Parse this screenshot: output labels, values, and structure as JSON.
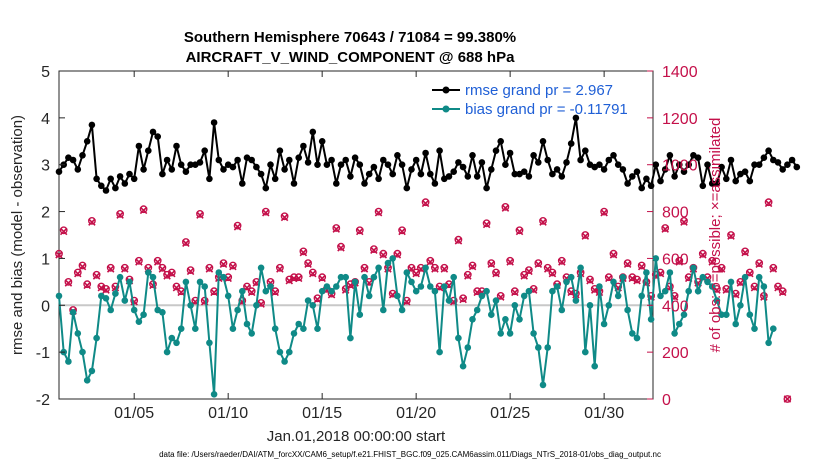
{
  "colors": {
    "rmse": "#000000",
    "bias": "#0f8a87",
    "obs": "#c4104a",
    "zero_line": "#c8c8c8",
    "legend_text": "#1f5fd6"
  },
  "chart_data": {
    "type": "line",
    "title": "Southern Hemisphere 70643 / 71084 = 99.380%",
    "subtitle": "AIRCRAFT_V_WIND_COMPONENT @ 688 hPa",
    "xlabel": "Jan.01,2018 00:00:00 start",
    "ylabel": "rmse and bias (model - observation)",
    "ylabel_right": "# of obs: o=possible; ×=assimilated",
    "xlim": [
      1.0,
      32.6
    ],
    "ylim": [
      -2,
      5
    ],
    "ylim_right": [
      0,
      1400
    ],
    "x_ticks": [
      5,
      10,
      15,
      20,
      25,
      30
    ],
    "x_tick_labels": [
      "01/05",
      "01/10",
      "01/15",
      "01/20",
      "01/25",
      "01/30"
    ],
    "y_tick_labels": [
      "-2",
      "-1",
      "0",
      "1",
      "2",
      "3",
      "4",
      "5"
    ],
    "y_right_tick_labels": [
      "0",
      "200",
      "400",
      "600",
      "800",
      "1000",
      "1200",
      "1400"
    ],
    "legend": [
      {
        "name": "rmse",
        "label": "rmse grand pr = 2.967"
      },
      {
        "name": "bias",
        "label": "bias grand pr = -0.11791"
      }
    ],
    "x_start": 1.0,
    "x_step": 0.25,
    "series": [
      {
        "name": "rmse",
        "axis": "left",
        "values": [
          2.85,
          3.0,
          3.15,
          3.1,
          2.9,
          3.2,
          3.5,
          3.85,
          2.7,
          2.55,
          2.45,
          2.7,
          2.5,
          2.75,
          2.6,
          2.8,
          2.7,
          3.4,
          2.9,
          3.3,
          3.7,
          3.6,
          2.8,
          3.1,
          2.9,
          3.4,
          3.0,
          2.85,
          3.0,
          3.0,
          3.05,
          3.3,
          2.7,
          3.9,
          3.1,
          2.9,
          3.0,
          2.95,
          3.1,
          2.6,
          3.15,
          3.1,
          2.95,
          2.8,
          2.5,
          3.0,
          2.7,
          3.3,
          2.9,
          3.1,
          2.6,
          3.15,
          3.4,
          3.05,
          3.7,
          3.0,
          3.5,
          3.0,
          3.1,
          2.6,
          3.0,
          3.1,
          2.75,
          3.15,
          3.0,
          2.6,
          2.8,
          2.95,
          2.7,
          3.1,
          3.0,
          2.8,
          3.2,
          3.0,
          2.5,
          2.9,
          3.1,
          2.8,
          3.25,
          2.8,
          2.6,
          3.3,
          2.7,
          2.75,
          2.85,
          3.05,
          2.95,
          2.75,
          3.2,
          2.75,
          3.05,
          2.5,
          2.9,
          3.3,
          3.5,
          3.0,
          3.25,
          2.8,
          2.8,
          2.85,
          2.75,
          3.2,
          3.05,
          3.5,
          3.1,
          2.8,
          2.9,
          2.75,
          3.05,
          3.45,
          4.0,
          3.1,
          3.3,
          3.0,
          2.95,
          3.0,
          2.9,
          3.1,
          3.2,
          3.0,
          2.9,
          2.6,
          2.75,
          2.85,
          2.5,
          2.7,
          2.55,
          3.0,
          2.65,
          2.9,
          3.2,
          2.75,
          3.0,
          2.85,
          3.0,
          3.2,
          3.15,
          2.55,
          3.0,
          2.6,
          2.6,
          2.95,
          2.7,
          3.1,
          2.65,
          2.8,
          2.85,
          2.65,
          3.0,
          3.0,
          3.15,
          3.3,
          3.1,
          3.05,
          2.9,
          3.0,
          3.1,
          2.95
        ]
      },
      {
        "name": "bias",
        "axis": "left",
        "values": [
          0.2,
          -1.0,
          -1.2,
          -0.15,
          -0.6,
          -1.0,
          -1.6,
          -1.4,
          -0.7,
          0.2,
          0.15,
          -0.1,
          0.25,
          0.6,
          0.1,
          0.5,
          -0.1,
          -0.35,
          -0.2,
          0.7,
          0.6,
          -0.1,
          -0.15,
          -1.0,
          -0.7,
          -0.8,
          -0.5,
          0.5,
          0.0,
          -0.5,
          0.5,
          0.4,
          -0.8,
          -1.9,
          0.7,
          0.6,
          0.2,
          -0.5,
          -0.1,
          0.3,
          -0.4,
          -0.6,
          0.0,
          0.8,
          0.3,
          0.4,
          -0.5,
          -1.0,
          -1.2,
          -1.0,
          -0.6,
          -0.4,
          -0.5,
          0.1,
          0.0,
          -0.5,
          0.3,
          0.4,
          0.3,
          0.4,
          0.6,
          0.6,
          -0.7,
          0.5,
          -0.2,
          0.6,
          0.2,
          0.6,
          0.8,
          -0.1,
          0.9,
          1.0,
          0.2,
          -0.1,
          0.7,
          0.5,
          0.3,
          0.4,
          0.8,
          0.4,
          0.3,
          -1.0,
          0.4,
          0.1,
          0.6,
          -0.7,
          -1.3,
          -0.9,
          -0.3,
          -0.1,
          0.2,
          0.3,
          -0.2,
          0.1,
          -0.6,
          -0.3,
          -0.6,
          0.0,
          -0.3,
          0.2,
          0.3,
          -0.6,
          -0.9,
          -1.7,
          -0.9,
          0.3,
          0.4,
          -0.1,
          0.5,
          0.6,
          0.1,
          0.8,
          -1.0,
          0.0,
          -1.3,
          0.4,
          -0.4,
          0.0,
          0.5,
          0.2,
          0.6,
          -0.1,
          -0.6,
          -0.7,
          0.2,
          0.7,
          -0.3,
          1.0,
          0.2,
          0.3,
          0.7,
          -0.6,
          -0.4,
          -0.2,
          0.3,
          0.8,
          0.3,
          0.6,
          0.5,
          0.4,
          0.1,
          -0.2,
          -0.2,
          0.5,
          -0.4,
          0.0,
          0.6,
          -0.2,
          -0.5,
          0.6,
          0.4,
          -0.8,
          -0.5
        ]
      },
      {
        "name": "obs_possible",
        "axis": "right",
        "values": [
          620,
          720,
          500,
          380,
          540,
          570,
          490,
          760,
          530,
          480,
          470,
          560,
          480,
          790,
          560,
          510,
          420,
          590,
          810,
          560,
          490,
          590,
          560,
          530,
          540,
          480,
          460,
          670,
          550,
          420,
          790,
          420,
          560,
          460,
          520,
          580,
          520,
          570,
          740,
          420,
          480,
          460,
          500,
          410,
          800,
          500,
          460,
          560,
          780,
          510,
          520,
          520,
          630,
          580,
          540,
          430,
          520,
          470,
          450,
          730,
          650,
          470,
          490,
          500,
          720,
          560,
          500,
          640,
          800,
          620,
          560,
          450,
          620,
          720,
          420,
          560,
          540,
          560,
          840,
          590,
          560,
          480,
          560,
          490,
          420,
          680,
          430,
          530,
          570,
          460,
          460,
          750,
          580,
          540,
          440,
          820,
          590,
          460,
          720,
          530,
          550,
          470,
          580,
          760,
          560,
          540,
          490,
          590,
          520,
          460,
          450,
          540,
          700,
          510,
          470,
          460,
          800,
          520,
          620,
          480,
          520,
          580,
          520,
          510,
          570,
          500,
          440,
          530,
          540,
          730,
          480,
          440,
          590,
          760,
          520,
          560,
          500,
          620,
          520,
          590,
          470,
          560,
          470,
          700,
          450,
          500,
          630,
          540,
          480,
          580,
          440,
          840,
          560,
          480,
          460,
          0
        ]
      },
      {
        "name": "obs_assimilated",
        "axis": "right",
        "values": [
          615,
          715,
          495,
          375,
          535,
          565,
          485,
          755,
          525,
          475,
          465,
          555,
          475,
          785,
          555,
          505,
          415,
          585,
          805,
          555,
          485,
          585,
          555,
          525,
          535,
          475,
          455,
          665,
          545,
          415,
          785,
          415,
          555,
          455,
          515,
          575,
          515,
          565,
          735,
          415,
          475,
          455,
          495,
          405,
          795,
          495,
          455,
          555,
          775,
          505,
          515,
          515,
          625,
          575,
          535,
          425,
          515,
          465,
          445,
          725,
          645,
          465,
          485,
          495,
          715,
          555,
          495,
          635,
          795,
          615,
          555,
          445,
          615,
          715,
          415,
          555,
          535,
          555,
          835,
          585,
          555,
          475,
          555,
          485,
          415,
          675,
          425,
          525,
          565,
          455,
          455,
          745,
          575,
          535,
          435,
          815,
          585,
          455,
          715,
          525,
          545,
          465,
          575,
          755,
          555,
          535,
          485,
          585,
          515,
          455,
          445,
          535,
          695,
          505,
          465,
          455,
          795,
          515,
          615,
          475,
          515,
          575,
          515,
          505,
          565,
          495,
          435,
          525,
          535,
          725,
          475,
          435,
          585,
          755,
          515,
          555,
          495,
          615,
          515,
          585,
          465,
          555,
          465,
          695,
          445,
          495,
          625,
          535,
          475,
          575,
          435,
          835,
          555,
          475,
          455,
          0
        ]
      }
    ]
  },
  "footer": {
    "text": "data file: /Users/raeder/DAI/ATM_forcXX/CAM6_setup/f.e21.FHIST_BGC.f09_025.CAM6assim.011/Diags_NTrS_2018-01/obs_diag_output.nc"
  }
}
